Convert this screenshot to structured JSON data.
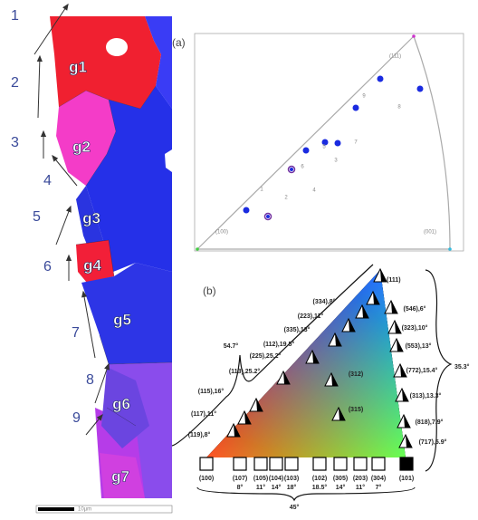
{
  "left_panel": {
    "step_labels": [
      "1",
      "2",
      "3",
      "4",
      "5",
      "6",
      "7",
      "8",
      "9"
    ],
    "grain_labels": [
      "g1",
      "g2",
      "g3",
      "g4",
      "g5",
      "g6",
      "g7"
    ],
    "scale_bar": "10µm"
  },
  "panel_a": {
    "label": "(a)",
    "corners": [
      "(111)",
      "(100)",
      "(001)"
    ],
    "point_labels": [
      "1",
      "2",
      "3",
      "4",
      "5",
      "6",
      "7",
      "8",
      "9"
    ]
  },
  "panel_b": {
    "label": "(b)",
    "apex": "(111)",
    "hyp_labels": [
      "(334),8°",
      "(223),11°",
      "(335),13°",
      "(112),19.5°",
      "(225),25.2°",
      "(113),25.2°",
      "(115),16°",
      "(117),11°",
      "(119),8°"
    ],
    "right_labels": [
      "(546),6°",
      "(323),10°",
      "(553),13°",
      "(772),15.4°",
      "(313),13.3°",
      "(818),7.9°",
      "(717),5.9°"
    ],
    "bottom_planes": [
      "(100)",
      "(107)",
      "(105)",
      "(104)",
      "(103)",
      "(102)",
      "(305)",
      "(203)",
      "(304)",
      "(101)"
    ],
    "bottom_angles": [
      "8°",
      "11°",
      "14°",
      "18°",
      "18.5°",
      "14°",
      "11°",
      "7°"
    ],
    "inner_labels": [
      "(312)",
      "(315)"
    ],
    "angle_spans": [
      "54.7°",
      "35.3°",
      "45°"
    ]
  }
}
